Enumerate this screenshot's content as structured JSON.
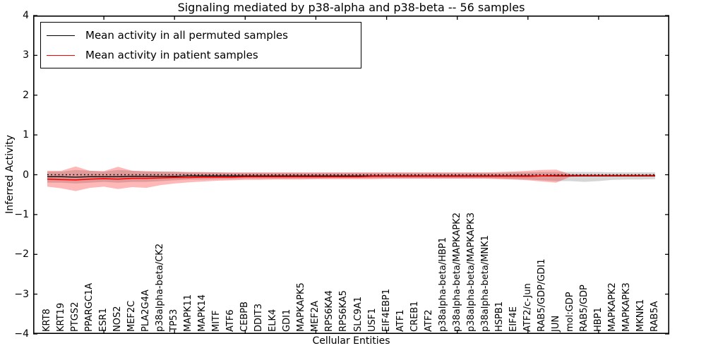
{
  "title": "Signaling mediated by p38-alpha and p38-beta -- 56 samples",
  "legend": {
    "entries": [
      {
        "label": "Mean activity in all permuted samples",
        "color": "#000000"
      },
      {
        "label": "Mean activity in patient samples",
        "color": "#ff0000"
      }
    ]
  },
  "axes": {
    "xlabel": "Cellular Entities",
    "ylabel": "Inferred Activity"
  },
  "chart_data": {
    "type": "line",
    "title": "Signaling mediated by p38-alpha and p38-beta -- 56 samples",
    "xlabel": "Cellular Entities",
    "ylabel": "Inferred Activity",
    "xlim": [
      0,
      45
    ],
    "ylim": [
      -4,
      4
    ],
    "grid": false,
    "legend_position": "upper left",
    "yticks": [
      {
        "v": 4,
        "label": "4"
      },
      {
        "v": 3,
        "label": "3"
      },
      {
        "v": 2,
        "label": "2"
      },
      {
        "v": 1,
        "label": "1"
      },
      {
        "v": 0,
        "label": "0"
      },
      {
        "v": -1,
        "label": "−1"
      },
      {
        "v": -2,
        "label": "−2"
      },
      {
        "v": -3,
        "label": "−3"
      },
      {
        "v": -4,
        "label": "−4"
      }
    ],
    "xticks_major": [
      5,
      10,
      15,
      20,
      25,
      30,
      35,
      40
    ],
    "zero_line": {
      "y": 0,
      "style": "dotted",
      "color": "#000000"
    },
    "categories": [
      "KRT8",
      "KRT19",
      "PTGS2",
      "PPARGC1A",
      "ESR1",
      "NOS2",
      "MEF2C",
      "PLA2G4A",
      "p38alpha-beta/CK2",
      "TP53",
      "MAPK11",
      "MAPK14",
      "MITF",
      "ATF6",
      "CEBPB",
      "DDIT3",
      "ELK4",
      "GDI1",
      "MAPKAPK5",
      "MEF2A",
      "RPS6KA4",
      "RPS6KA5",
      "SLC9A1",
      "USF1",
      "EIF4EBP1",
      "ATF1",
      "CREB1",
      "ATF2",
      "p38alpha-beta/HBP1",
      "p38alpha-beta/MAPKAPK2",
      "p38alpha-beta/MAPKAPK3",
      "p38alpha-beta/MNK1",
      "HSPB1",
      "EIF4E",
      "ATF2/c-Jun",
      "RAB5/GDP/GDI1",
      "JUN",
      "mol:GDP",
      "RAB5/GDP",
      "HBP1",
      "MAPKAPK2",
      "MAPKAPK3",
      "MKNK1",
      "RAB5A"
    ],
    "series": [
      {
        "name": "Mean activity in all permuted samples",
        "color": "#000000",
        "line_style": "solid",
        "line_width": 1.3,
        "values": [
          -0.05,
          -0.05,
          -0.06,
          -0.05,
          -0.05,
          -0.05,
          -0.04,
          -0.04,
          -0.04,
          -0.04,
          -0.03,
          -0.03,
          -0.03,
          -0.03,
          -0.03,
          -0.03,
          -0.03,
          -0.03,
          -0.03,
          -0.03,
          -0.03,
          -0.03,
          -0.03,
          -0.03,
          -0.03,
          -0.03,
          -0.03,
          -0.03,
          -0.03,
          -0.03,
          -0.03,
          -0.03,
          -0.03,
          -0.03,
          -0.03,
          -0.03,
          -0.03,
          -0.03,
          -0.03,
          -0.03,
          -0.03,
          -0.03,
          -0.03,
          -0.03
        ]
      },
      {
        "name": "Mean activity in patient samples",
        "color": "#ff0000",
        "line_style": "solid",
        "line_width": 1.6,
        "values": [
          -0.11,
          -0.12,
          -0.13,
          -0.11,
          -0.1,
          -0.11,
          -0.09,
          -0.09,
          -0.08,
          -0.07,
          -0.07,
          -0.06,
          -0.06,
          -0.06,
          -0.05,
          -0.05,
          -0.05,
          -0.05,
          -0.05,
          -0.05,
          -0.05,
          -0.05,
          -0.05,
          -0.04,
          -0.04,
          -0.04,
          -0.04,
          -0.04,
          -0.04,
          -0.04,
          -0.04,
          -0.04,
          -0.04,
          -0.04,
          -0.04,
          -0.03,
          -0.02,
          -0.02,
          -0.02,
          -0.02,
          -0.02,
          -0.02,
          -0.02,
          -0.02
        ]
      }
    ],
    "bands": [
      {
        "name": "Permuted samples std band",
        "fill": "rgba(0,0,0,0.16)",
        "upper": [
          0.08,
          0.08,
          0.12,
          0.1,
          0.08,
          0.12,
          0.1,
          0.08,
          0.08,
          0.07,
          0.06,
          0.06,
          0.06,
          0.05,
          0.05,
          0.05,
          0.05,
          0.05,
          0.05,
          0.05,
          0.05,
          0.05,
          0.05,
          0.05,
          0.05,
          0.05,
          0.05,
          0.05,
          0.05,
          0.05,
          0.05,
          0.05,
          0.05,
          0.06,
          0.06,
          0.07,
          0.07,
          0.07,
          0.07,
          0.07,
          0.06,
          0.06,
          0.06,
          0.06
        ],
        "lower": [
          -0.2,
          -0.2,
          -0.22,
          -0.2,
          -0.18,
          -0.2,
          -0.18,
          -0.18,
          -0.16,
          -0.14,
          -0.12,
          -0.12,
          -0.11,
          -0.11,
          -0.1,
          -0.1,
          -0.1,
          -0.1,
          -0.1,
          -0.1,
          -0.09,
          -0.09,
          -0.09,
          -0.09,
          -0.09,
          -0.09,
          -0.09,
          -0.09,
          -0.09,
          -0.09,
          -0.09,
          -0.09,
          -0.1,
          -0.11,
          -0.12,
          -0.14,
          -0.16,
          -0.16,
          -0.18,
          -0.16,
          -0.13,
          -0.12,
          -0.12,
          -0.11
        ]
      },
      {
        "name": "Patient samples std band",
        "fill": "rgba(255,0,0,0.28)",
        "upper": [
          0.1,
          0.1,
          0.21,
          0.1,
          0.09,
          0.2,
          0.1,
          0.09,
          0.08,
          0.08,
          0.07,
          0.07,
          0.06,
          0.06,
          0.06,
          0.06,
          0.06,
          0.06,
          0.06,
          0.06,
          0.06,
          0.06,
          0.06,
          0.06,
          0.06,
          0.06,
          0.06,
          0.06,
          0.06,
          0.06,
          0.06,
          0.06,
          0.07,
          0.08,
          0.1,
          0.12,
          0.13,
          0.01,
          0.0,
          0.0,
          0.0,
          0.0,
          0.0,
          0.0
        ],
        "lower": [
          -0.3,
          -0.34,
          -0.41,
          -0.33,
          -0.3,
          -0.36,
          -0.31,
          -0.33,
          -0.26,
          -0.22,
          -0.19,
          -0.17,
          -0.15,
          -0.14,
          -0.13,
          -0.13,
          -0.12,
          -0.12,
          -0.12,
          -0.11,
          -0.11,
          -0.11,
          -0.11,
          -0.11,
          -0.1,
          -0.1,
          -0.1,
          -0.1,
          -0.1,
          -0.1,
          -0.1,
          -0.1,
          -0.11,
          -0.12,
          -0.14,
          -0.17,
          -0.2,
          -0.05,
          -0.04,
          -0.04,
          -0.04,
          -0.04,
          -0.04,
          -0.04
        ]
      }
    ]
  }
}
